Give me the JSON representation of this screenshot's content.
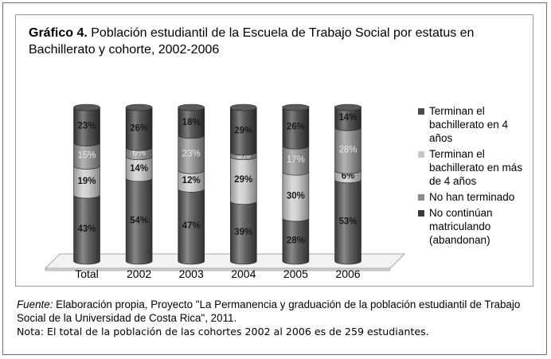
{
  "title_bold": "Gráfico 4.",
  "title_rest": " Población estudiantil de la Escuela de Trabajo Social por estatus en Bachillerato y cohorte, 2002-2006",
  "legend": [
    {
      "label": "Terminan el bachillerato en 4 años",
      "color": "#4a4a4a"
    },
    {
      "label": "Terminan el bachillerato en más de 4 años",
      "color": "#c8c8c8"
    },
    {
      "label": "No han terminado",
      "color": "#8c8c8c"
    },
    {
      "label": "No continúan matriculando (abandonan)",
      "color": "#3a3a3a"
    }
  ],
  "notes": {
    "fuente_label": "Fuente:",
    "fuente_text": " Elaboración propia, Proyecto \"La Permanencia y graduación de la población estudiantil de Trabajo Social de la Universidad de Costa Rica\", 2011.",
    "nota_label": "Nota",
    "nota_text": ": El total de la población de  las cohortes 2002 al 2006 es de 259 estudiantes."
  },
  "chart_data": {
    "type": "bar",
    "stacked": true,
    "percent": true,
    "categories": [
      "Total",
      "2002",
      "2003",
      "2004",
      "2005",
      "2006"
    ],
    "series": [
      {
        "name": "Terminan el bachillerato en 4 años",
        "values": [
          43,
          54,
          47,
          39,
          28,
          53
        ],
        "color": "#4a4a4a"
      },
      {
        "name": "Terminan el bachillerato en más de 4 años",
        "values": [
          19,
          14,
          12,
          29,
          30,
          6
        ],
        "color": "#c8c8c8"
      },
      {
        "name": "No han terminado",
        "values": [
          15,
          6,
          23,
          3,
          17,
          28
        ],
        "color": "#8c8c8c"
      },
      {
        "name": "No continúan matriculando (abandonan)",
        "values": [
          23,
          26,
          18,
          29,
          26,
          14
        ],
        "color": "#3a3a3a"
      }
    ],
    "ylim": [
      0,
      100
    ],
    "legend_position": "right"
  }
}
